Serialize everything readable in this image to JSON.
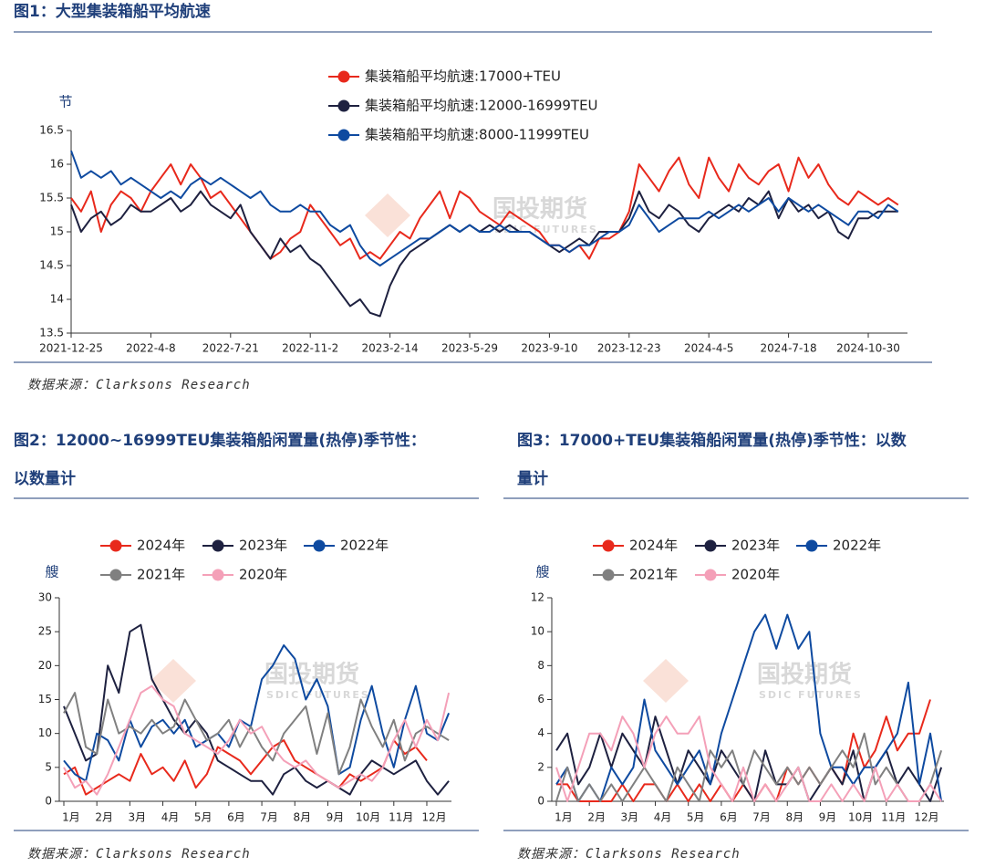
{
  "chart_data": [
    {
      "type": "line",
      "title": [
        "图1：大型集装箱船平均航速"
      ],
      "ylabel": "节",
      "source": "数据来源：Clarksons Research",
      "watermark": [
        "国投期货",
        "SDIC FUTURES"
      ],
      "categories": [
        "2021-12-25",
        null,
        null,
        null,
        null,
        null,
        null,
        null,
        "2022-4-8",
        null,
        null,
        null,
        null,
        null,
        null,
        null,
        "2022-7-21",
        null,
        null,
        null,
        null,
        null,
        null,
        null,
        "2022-11-2",
        null,
        null,
        null,
        null,
        null,
        null,
        null,
        "2023-2-14",
        null,
        null,
        null,
        null,
        null,
        null,
        null,
        "2023-5-29",
        null,
        null,
        null,
        null,
        null,
        null,
        null,
        "2023-9-10",
        null,
        null,
        null,
        null,
        null,
        null,
        null,
        "2023-12-23",
        null,
        null,
        null,
        null,
        null,
        null,
        null,
        "2024-4-5",
        null,
        null,
        null,
        null,
        null,
        null,
        null,
        "2024-7-18",
        null,
        null,
        null,
        null,
        null,
        null,
        null,
        "2024-10-30",
        null,
        null,
        null
      ],
      "ylim": [
        13.5,
        16.5
      ],
      "yticks": [
        13.5,
        14,
        14.5,
        15,
        15.5,
        16,
        16.5
      ],
      "series": [
        {
          "name": "集装箱船平均航速:17000+TEU",
          "color": "#e8291c",
          "values": [
            15.5,
            15.3,
            15.6,
            15.0,
            15.4,
            15.6,
            15.5,
            15.3,
            15.6,
            15.8,
            16.0,
            15.7,
            16.0,
            15.8,
            15.5,
            15.6,
            15.4,
            15.2,
            15.0,
            14.8,
            14.6,
            14.7,
            14.9,
            15.0,
            15.4,
            15.2,
            15.0,
            14.8,
            14.9,
            14.6,
            14.7,
            14.6,
            14.8,
            15.0,
            14.9,
            15.2,
            15.4,
            15.6,
            15.2,
            15.6,
            15.5,
            15.3,
            15.2,
            15.1,
            15.3,
            15.2,
            15.1,
            15.0,
            14.8,
            14.8,
            14.7,
            14.8,
            14.6,
            14.9,
            14.9,
            15.0,
            15.3,
            16.0,
            15.8,
            15.6,
            15.9,
            16.1,
            15.7,
            15.5,
            16.1,
            15.8,
            15.6,
            16.0,
            15.8,
            15.7,
            15.9,
            16.0,
            15.6,
            16.1,
            15.8,
            16.0,
            15.7,
            15.5,
            15.4,
            15.6,
            15.5,
            15.4,
            15.5,
            15.4
          ]
        },
        {
          "name": "集装箱船平均航速:12000-16999TEU",
          "color": "#1e2140",
          "values": [
            15.4,
            15.0,
            15.2,
            15.3,
            15.1,
            15.2,
            15.4,
            15.3,
            15.3,
            15.4,
            15.5,
            15.3,
            15.4,
            15.6,
            15.4,
            15.3,
            15.2,
            15.4,
            15.0,
            14.8,
            14.6,
            14.9,
            14.7,
            14.8,
            14.6,
            14.5,
            14.3,
            14.1,
            13.9,
            14.0,
            13.8,
            13.75,
            14.2,
            14.5,
            14.7,
            14.8,
            14.9,
            15.0,
            15.1,
            15.0,
            15.1,
            15.0,
            15.1,
            15.0,
            15.1,
            15.0,
            15.0,
            14.9,
            14.8,
            14.7,
            14.8,
            14.9,
            14.8,
            15.0,
            15.0,
            15.0,
            15.2,
            15.6,
            15.3,
            15.2,
            15.4,
            15.3,
            15.1,
            15.0,
            15.2,
            15.3,
            15.4,
            15.3,
            15.5,
            15.4,
            15.6,
            15.2,
            15.5,
            15.3,
            15.4,
            15.2,
            15.3,
            15.0,
            14.9,
            15.2,
            15.2,
            15.3,
            15.3,
            15.3
          ]
        },
        {
          "name": "集装箱船平均航速:8000-11999TEU",
          "color": "#0e4aa0",
          "values": [
            16.2,
            15.8,
            15.9,
            15.8,
            15.9,
            15.7,
            15.8,
            15.7,
            15.6,
            15.5,
            15.6,
            15.5,
            15.7,
            15.8,
            15.7,
            15.8,
            15.7,
            15.6,
            15.5,
            15.6,
            15.4,
            15.3,
            15.3,
            15.4,
            15.3,
            15.3,
            15.1,
            15.0,
            15.1,
            14.8,
            14.6,
            14.5,
            14.6,
            14.7,
            14.8,
            14.9,
            14.9,
            15.0,
            15.1,
            15.0,
            15.1,
            15.0,
            15.0,
            15.1,
            15.0,
            15.0,
            15.0,
            14.9,
            14.8,
            14.8,
            14.7,
            14.8,
            14.8,
            14.9,
            15.0,
            15.0,
            15.1,
            15.4,
            15.2,
            15.0,
            15.1,
            15.2,
            15.2,
            15.2,
            15.3,
            15.2,
            15.3,
            15.4,
            15.3,
            15.4,
            15.5,
            15.3,
            15.5,
            15.4,
            15.3,
            15.4,
            15.3,
            15.2,
            15.1,
            15.3,
            15.3,
            15.2,
            15.4,
            15.3
          ]
        }
      ]
    },
    {
      "type": "line",
      "title": [
        "图2：12000~16999TEU集装箱船闲置量(热停)季节性：",
        "以数量计"
      ],
      "ylabel": "艘",
      "source": "数据来源：Clarksons Research",
      "watermark": [
        "国投期货",
        "SDIC FUTURES"
      ],
      "categories": [
        "1月",
        null,
        null,
        "2月",
        null,
        null,
        "3月",
        null,
        null,
        "4月",
        null,
        null,
        "5月",
        null,
        null,
        "6月",
        null,
        null,
        "7月",
        null,
        null,
        "8月",
        null,
        null,
        "9月",
        null,
        null,
        "10月",
        null,
        null,
        "11月",
        null,
        null,
        "12月",
        null,
        null
      ],
      "ylim": [
        0,
        30
      ],
      "yticks": [
        0,
        5,
        10,
        15,
        20,
        25,
        30
      ],
      "series": [
        {
          "name": "2024年",
          "color": "#e8291c",
          "values": [
            4,
            5,
            1,
            2,
            3,
            4,
            3,
            7,
            4,
            5,
            3,
            6,
            2,
            4,
            8,
            7,
            6,
            4,
            6,
            8,
            9,
            6,
            5,
            4,
            3,
            2,
            4,
            3,
            4,
            5,
            9,
            7,
            8,
            6,
            null,
            null
          ]
        },
        {
          "name": "2023年",
          "color": "#1e2140",
          "values": [
            14,
            10,
            6,
            7,
            20,
            16,
            25,
            26,
            18,
            15,
            12,
            10,
            12,
            10,
            6,
            5,
            4,
            3,
            3,
            1,
            4,
            5,
            3,
            2,
            3,
            2,
            1,
            4,
            6,
            5,
            4,
            5,
            6,
            3,
            1,
            3
          ]
        },
        {
          "name": "2022年",
          "color": "#0e4aa0",
          "values": [
            6,
            4,
            3,
            10,
            9,
            6,
            12,
            8,
            11,
            12,
            10,
            12,
            8,
            9,
            10,
            8,
            12,
            11,
            18,
            20,
            23,
            21,
            15,
            18,
            14,
            4,
            5,
            12,
            17,
            10,
            5,
            12,
            17,
            10,
            9,
            13
          ]
        },
        {
          "name": "2021年",
          "color": "#808080",
          "values": [
            13,
            16,
            8,
            7,
            15,
            10,
            11,
            10,
            12,
            10,
            11,
            15,
            12,
            9,
            10,
            12,
            8,
            11,
            8,
            6,
            10,
            12,
            14,
            7,
            13,
            4,
            8,
            15,
            11,
            8,
            12,
            6,
            10,
            11,
            10,
            9
          ]
        },
        {
          "name": "2020年",
          "color": "#f4a0b8",
          "values": [
            5,
            2,
            3,
            1,
            4,
            8,
            12,
            16,
            17,
            15,
            14,
            10,
            9,
            8,
            7,
            9,
            12,
            10,
            11,
            8,
            6,
            5,
            6,
            4,
            3,
            2,
            3,
            4,
            3,
            5,
            9,
            12,
            8,
            12,
            9,
            16
          ]
        }
      ]
    },
    {
      "type": "line",
      "title": [
        "图3：17000+TEU集装箱船闲置量(热停)季节性：以数",
        "量计"
      ],
      "ylabel": "艘",
      "source": "数据来源：Clarksons Research",
      "watermark": [
        "国投期货",
        "SDIC FUTURES"
      ],
      "categories": [
        "1月",
        null,
        null,
        "2月",
        null,
        null,
        "3月",
        null,
        null,
        "4月",
        null,
        null,
        "5月",
        null,
        null,
        "6月",
        null,
        null,
        "7月",
        null,
        null,
        "8月",
        null,
        null,
        "9月",
        null,
        null,
        "10月",
        null,
        null,
        "11月",
        null,
        null,
        "12月",
        null,
        null
      ],
      "ylim": [
        0,
        12
      ],
      "yticks": [
        0,
        2,
        4,
        6,
        8,
        10,
        12
      ],
      "series": [
        {
          "name": "2024年",
          "color": "#e8291c",
          "values": [
            1,
            1,
            0,
            0,
            0,
            0,
            1,
            0,
            1,
            1,
            0,
            1,
            0,
            1,
            0,
            1,
            0,
            1,
            0,
            1,
            0,
            2,
            1,
            2,
            1,
            2,
            1,
            4,
            2,
            3,
            5,
            3,
            4,
            4,
            6,
            null
          ]
        },
        {
          "name": "2023年",
          "color": "#1e2140",
          "values": [
            3,
            4,
            1,
            2,
            4,
            2,
            4,
            3,
            2,
            5,
            3,
            1,
            3,
            2,
            1,
            3,
            2,
            1,
            0,
            3,
            1,
            1,
            2,
            0,
            1,
            2,
            1,
            3,
            0,
            2,
            3,
            1,
            2,
            1,
            0,
            2
          ]
        },
        {
          "name": "2022年",
          "color": "#0e4aa0",
          "values": [
            1,
            2,
            0,
            1,
            0,
            2,
            1,
            2,
            6,
            3,
            2,
            1,
            2,
            3,
            1,
            4,
            6,
            8,
            10,
            11,
            9,
            11,
            9,
            10,
            4,
            2,
            2,
            1,
            2,
            2,
            3,
            4,
            7,
            1,
            4,
            0
          ]
        },
        {
          "name": "2021年",
          "color": "#808080",
          "values": [
            0,
            2,
            0,
            1,
            0,
            1,
            0,
            1,
            2,
            1,
            0,
            2,
            1,
            0,
            3,
            2,
            3,
            1,
            3,
            2,
            1,
            2,
            1,
            2,
            1,
            2,
            3,
            2,
            4,
            1,
            2,
            1,
            0,
            0,
            1,
            3
          ]
        },
        {
          "name": "2020年",
          "color": "#f4a0b8",
          "values": [
            2,
            0,
            2,
            4,
            4,
            3,
            5,
            4,
            2,
            4,
            5,
            4,
            4,
            5,
            2,
            1,
            0,
            2,
            0,
            1,
            0,
            1,
            2,
            0,
            0,
            1,
            0,
            1,
            0,
            2,
            0,
            1,
            0,
            0,
            1,
            0
          ]
        }
      ]
    }
  ]
}
